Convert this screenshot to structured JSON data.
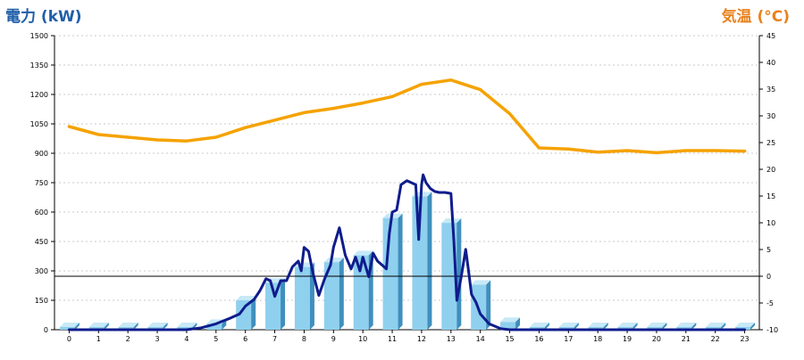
{
  "titles": {
    "left": "電力 (kW)",
    "right": "気温 (°C)"
  },
  "colors": {
    "left_title": "#1f5ea8",
    "right_title": "#e8821c",
    "bar_face": "#8fd0ee",
    "bar_side": "#3f8fbe",
    "bar_top": "#c7e9f7",
    "power_line": "#0f1c8c",
    "temp_line": "#f5a200",
    "grid": "#c8c8c8",
    "axis": "#000000"
  },
  "chart_data": {
    "type": "bar",
    "categories": [
      "0",
      "1",
      "2",
      "3",
      "4",
      "5",
      "6",
      "7",
      "8",
      "9",
      "10",
      "11",
      "12",
      "13",
      "14",
      "15",
      "16",
      "17",
      "18",
      "19",
      "20",
      "21",
      "22",
      "23"
    ],
    "x_tick_labels": [
      "0",
      "1",
      "2",
      "3",
      "4",
      "5",
      "6",
      "7",
      "8",
      "9",
      "10",
      "11",
      "12",
      "13",
      "14",
      "15",
      "16",
      "17",
      "18",
      "19",
      "20",
      "21",
      "22",
      "23"
    ],
    "y_left": {
      "label": "電力 (kW)",
      "range": [
        0,
        1500
      ],
      "ticks": [
        0,
        150,
        300,
        450,
        600,
        750,
        900,
        1050,
        1200,
        1350,
        1500
      ],
      "tick_labels": [
        "0",
        "150",
        "300",
        "450",
        "600",
        "750",
        "900",
        "1050",
        "1200",
        "1350",
        "1500"
      ]
    },
    "y_right": {
      "label": "気温 (°C)",
      "range": [
        -10,
        45
      ],
      "ticks": [
        -10,
        -5,
        0,
        5,
        10,
        15,
        20,
        25,
        30,
        35,
        40,
        45
      ],
      "tick_labels": [
        "-10",
        "-5",
        "0",
        "5",
        "10",
        "15",
        "20",
        "25",
        "30",
        "35",
        "40",
        "45"
      ]
    },
    "grid": true,
    "reference_line": {
      "axis": "right",
      "value": 0
    },
    "series": [
      {
        "type": "bar",
        "axis": "left",
        "values": [
          0,
          0,
          0,
          0,
          0,
          30,
          150,
          240,
          320,
          345,
          380,
          570,
          680,
          545,
          230,
          40,
          0,
          0,
          0,
          0,
          0,
          0,
          0,
          0
        ]
      },
      {
        "type": "line",
        "axis": "left",
        "x": [
          0,
          1,
          2,
          3,
          4,
          4.5,
          5,
          5.5,
          5.8,
          6,
          6.3,
          6.5,
          6.7,
          6.85,
          7,
          7.2,
          7.4,
          7.6,
          7.8,
          7.9,
          8,
          8.15,
          8.3,
          8.5,
          8.7,
          8.9,
          9,
          9.2,
          9.4,
          9.6,
          9.75,
          9.9,
          10,
          10.2,
          10.35,
          10.5,
          10.65,
          10.8,
          10.9,
          11,
          11.15,
          11.3,
          11.5,
          11.65,
          11.8,
          11.9,
          12,
          12.05,
          12.15,
          12.3,
          12.45,
          12.6,
          12.8,
          13,
          13.1,
          13.2,
          13.35,
          13.5,
          13.6,
          13.7,
          13.85,
          14,
          14.3,
          14.7,
          15,
          16,
          17,
          18,
          19,
          20,
          21,
          22,
          23
        ],
        "y": [
          0,
          0,
          0,
          0,
          0,
          10,
          30,
          60,
          80,
          120,
          155,
          200,
          260,
          250,
          170,
          250,
          250,
          320,
          350,
          300,
          420,
          400,
          290,
          175,
          260,
          330,
          420,
          520,
          380,
          310,
          370,
          300,
          370,
          270,
          390,
          350,
          330,
          310,
          490,
          600,
          610,
          740,
          760,
          750,
          740,
          460,
          740,
          790,
          750,
          720,
          705,
          700,
          700,
          695,
          450,
          150,
          270,
          410,
          300,
          180,
          140,
          80,
          30,
          5,
          0,
          0,
          0,
          0,
          0,
          0,
          0,
          0,
          0
        ]
      },
      {
        "type": "line",
        "axis": "right",
        "x": [
          0,
          1,
          2,
          3,
          4,
          5,
          6,
          7,
          8,
          9,
          10,
          11,
          12,
          13,
          14,
          15,
          16,
          17,
          18,
          19,
          20,
          21,
          22,
          23
        ],
        "y": [
          28,
          26.5,
          26,
          25.5,
          25.3,
          26,
          27.8,
          29.2,
          30.6,
          31.4,
          32.4,
          33.6,
          35.9,
          36.7,
          34.9,
          30.4,
          24,
          23.8,
          23.2,
          23.5,
          23.1,
          23.5,
          23.5,
          23.4
        ]
      }
    ]
  }
}
